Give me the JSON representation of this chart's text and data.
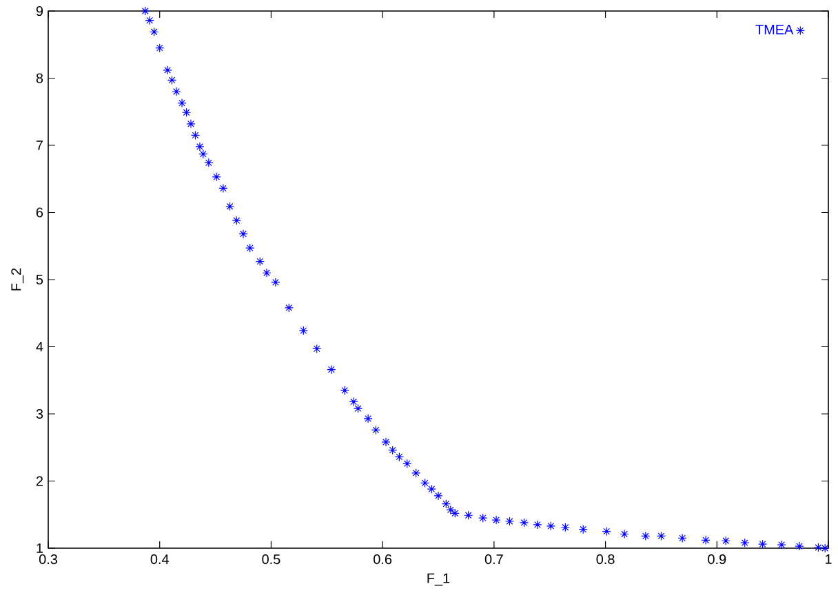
{
  "chart_data": {
    "type": "scatter",
    "xlabel": "F_1",
    "ylabel": "F_2",
    "x": [
      0.387,
      0.391,
      0.395,
      0.4,
      0.407,
      0.411,
      0.415,
      0.42,
      0.424,
      0.428,
      0.432,
      0.436,
      0.439,
      0.444,
      0.451,
      0.457,
      0.463,
      0.469,
      0.475,
      0.481,
      0.49,
      0.496,
      0.504,
      0.516,
      0.529,
      0.541,
      0.554,
      0.566,
      0.574,
      0.578,
      0.587,
      0.594,
      0.603,
      0.609,
      0.615,
      0.622,
      0.63,
      0.638,
      0.644,
      0.65,
      0.657,
      0.661,
      0.665,
      0.677,
      0.69,
      0.702,
      0.714,
      0.727,
      0.739,
      0.751,
      0.764,
      0.78,
      0.801,
      0.817,
      0.836,
      0.85,
      0.869,
      0.89,
      0.908,
      0.925,
      0.941,
      0.958,
      0.974,
      0.991,
      0.997
    ],
    "series": [
      {
        "name": "TMEA",
        "color": "#0000ff",
        "values": [
          9.0,
          8.86,
          8.69,
          8.45,
          8.12,
          7.97,
          7.8,
          7.63,
          7.49,
          7.32,
          7.15,
          6.98,
          6.87,
          6.74,
          6.53,
          6.36,
          6.09,
          5.88,
          5.68,
          5.47,
          5.27,
          5.1,
          4.96,
          4.58,
          4.24,
          3.97,
          3.66,
          3.35,
          3.18,
          3.08,
          2.93,
          2.76,
          2.58,
          2.46,
          2.36,
          2.26,
          2.12,
          1.97,
          1.88,
          1.78,
          1.66,
          1.57,
          1.52,
          1.49,
          1.45,
          1.42,
          1.4,
          1.38,
          1.35,
          1.33,
          1.31,
          1.28,
          1.25,
          1.21,
          1.18,
          1.18,
          1.15,
          1.12,
          1.11,
          1.08,
          1.06,
          1.05,
          1.03,
          1.01,
          1.0
        ]
      }
    ],
    "xlim": [
      0.3,
      1
    ],
    "ylim": [
      1,
      9
    ],
    "xticks": [
      0.3,
      0.4,
      0.5,
      0.6,
      0.7,
      0.8,
      0.9,
      1
    ],
    "yticks": [
      1,
      2,
      3,
      4,
      5,
      6,
      7,
      8,
      9
    ],
    "marker": "cross",
    "legend": "top right"
  }
}
